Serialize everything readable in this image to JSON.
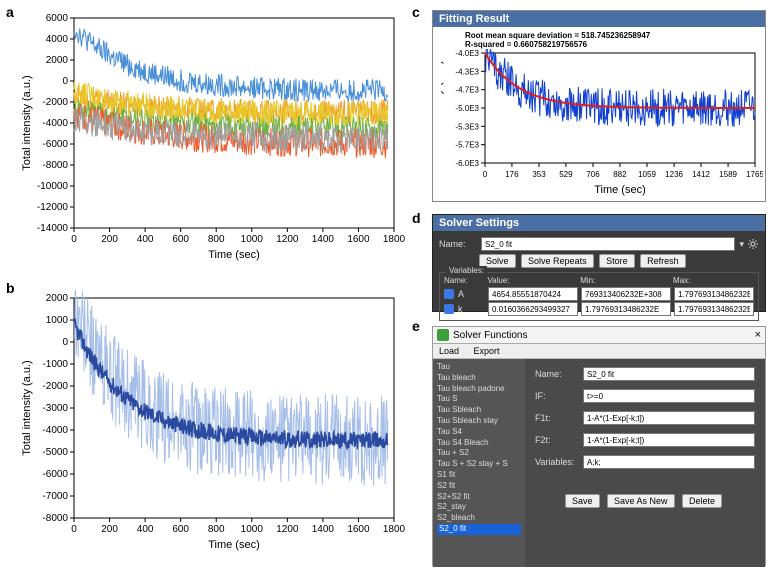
{
  "labels": {
    "a": "a",
    "b": "b",
    "c": "c",
    "d": "d",
    "e": "e"
  },
  "panel_a": {
    "type": "line",
    "xlabel": "Time (sec)",
    "ylabel": "Total intensity (a.u.)",
    "xlim": [
      0,
      1800
    ],
    "ylim": [
      -14000,
      6000
    ],
    "xticks": [
      0,
      200,
      400,
      600,
      800,
      1000,
      1200,
      1400,
      1600,
      1800
    ],
    "yticks": [
      -14000,
      -12000,
      -10000,
      -8000,
      -6000,
      -4000,
      -2000,
      0,
      2000,
      4000,
      6000
    ],
    "series_colors": [
      "#4a90d9",
      "#f0a030",
      "#6cb33f",
      "#f25c2c",
      "#a0a0a0",
      "#e8c828"
    ],
    "background": "#ffffff",
    "axis_color": "#000000",
    "label_fontsize": 11,
    "tick_fontsize": 10
  },
  "panel_b": {
    "type": "line",
    "xlabel": "Time (sec)",
    "ylabel": "Total intensity (a.u.)",
    "xlim": [
      0,
      1800
    ],
    "ylim": [
      -8000,
      2000
    ],
    "xticks": [
      0,
      200,
      400,
      600,
      800,
      1000,
      1200,
      1400,
      1600,
      1800
    ],
    "yticks": [
      -8000,
      -7000,
      -6000,
      -5000,
      -4000,
      -3000,
      -2000,
      -1000,
      0,
      1000,
      2000
    ],
    "colors": {
      "raw": "#9db8e6",
      "smoothed": "#2a4aa0"
    },
    "background": "#ffffff",
    "axis_color": "#000000",
    "label_fontsize": 11,
    "tick_fontsize": 10
  },
  "panel_c": {
    "window_title": "Fitting Result",
    "rmsd_line": "Root mean square deviation = 518.745236258947",
    "r2_line": "R-squared = 0.660758219756576",
    "xlabel": "Time (sec)",
    "ylabel": "Total intensity (a.u.)",
    "xlim": [
      0,
      1765
    ],
    "ylim": [
      -6000,
      -4000
    ],
    "xticks": [
      0,
      176,
      353,
      529,
      706,
      882,
      1059,
      1236,
      1412,
      1589,
      1765
    ],
    "yticks_labels": [
      "-4.0E3",
      "-4.3E3",
      "-4.7E3",
      "-5.0E3",
      "-5.3E3",
      "-5.7E3",
      "-6.0E3"
    ],
    "yticks_values": [
      -4000,
      -4333,
      -4667,
      -5000,
      -5333,
      -5667,
      -6000
    ],
    "colors": {
      "data": "#1040d0",
      "fit": "#e02020"
    },
    "background": "#ffffff",
    "label_fontsize": 11,
    "tick_fontsize": 8
  },
  "panel_d": {
    "window_title": "Solver Settings",
    "name_label": "Name:",
    "name_value": "S2_0 fit",
    "buttons": [
      "Solve",
      "Solve Repeats",
      "Store",
      "Refresh"
    ],
    "variables_legend": "Variables:",
    "columns": [
      "Name:",
      "Value:",
      "Min:",
      "Max:"
    ],
    "rows": [
      {
        "name": "A",
        "value": "4654.85551870424",
        "min": "769313406232E+308",
        "max": "1.79769313486232E"
      },
      {
        "name": "k",
        "value": "0.0160366293499327",
        "min": "1.79769313486232E",
        "max": "1.79769313486232E"
      }
    ],
    "background": "#3a3a3a",
    "accent": "#4a6fa5",
    "checkbox_color": "#3b78e7"
  },
  "panel_e": {
    "window_title": "Solver Functions",
    "close": "×",
    "menu": [
      "Load",
      "Export"
    ],
    "list_items": [
      "Tau",
      "Tau bleach",
      "Tau bleach padone",
      "Tau S",
      "Tau Sbleach",
      "Tau Sbleach stay",
      "Tau S4",
      "Tau S4 Bleach",
      "Tau + S2",
      "Tau S + S2 stay + S",
      "S1 fit",
      "S2 fit",
      "S2+S2 fit",
      "S2_stay",
      "S2_bleach",
      "S2_0 fit"
    ],
    "selected_item": "S2_0 fit",
    "fields": {
      "name_label": "Name:",
      "name_value": "S2_0 fit",
      "if_label": "IF:",
      "if_value": "t>=0",
      "f1_label": "F1t:",
      "f1_value": "1-A*(1-Exp[-k;t])",
      "f2_label": "F2t:",
      "f2_value": "1-A*(1-Exp[-k;t])",
      "vars_label": "Variables:",
      "vars_value": "A;k;"
    },
    "buttons": [
      "Save",
      "Save As New",
      "Delete"
    ],
    "background": "#4a4a4a",
    "list_bg": "#555555",
    "selection_color": "#1a63d6"
  }
}
